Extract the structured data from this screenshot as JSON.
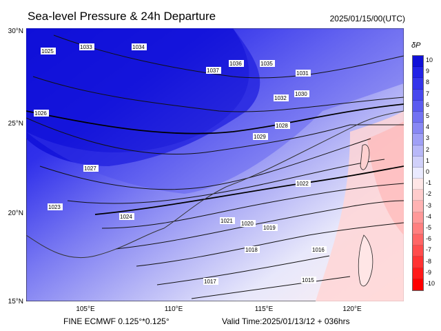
{
  "header": {
    "title": "Sea-level Pressure & 24h Departure",
    "datetime": "2025/01/15/00(UTC)"
  },
  "footer": {
    "model": "FINE ECMWF 0.125°*0.125°",
    "valid": "Valid Time:2025/01/13/12 + 036hrs"
  },
  "axes": {
    "lat_ticks": [
      "30°N",
      "25°N",
      "20°N",
      "15°N"
    ],
    "lon_ticks": [
      "105°E",
      "110°E",
      "115°E",
      "120°E"
    ]
  },
  "legend": {
    "title": "δP",
    "levels": [
      "10",
      "9",
      "8",
      "7",
      "6",
      "5",
      "4",
      "3",
      "2",
      "1",
      "0",
      "-1",
      "-2",
      "-3",
      "-4",
      "-5",
      "-6",
      "-7",
      "-8",
      "-9",
      "-10"
    ],
    "colors": [
      "#1010d8",
      "#2222e6",
      "#3434ea",
      "#4848ee",
      "#5c5cf0",
      "#7272f2",
      "#8888f4",
      "#a0a0f6",
      "#b8b8f8",
      "#d0d0fa",
      "#eaeaff",
      "#ffe6e6",
      "#ffcccc",
      "#ffb3b3",
      "#ff9999",
      "#ff8080",
      "#ff6666",
      "#ff4d4d",
      "#ff3333",
      "#ff1a1a",
      "#ff0000"
    ]
  },
  "isobar_labels": [
    "1025",
    "1033",
    "1034",
    "1035",
    "1036",
    "1037",
    "1031",
    "1030",
    "1032",
    "1029",
    "1028",
    "1027",
    "1026",
    "1024",
    "1023",
    "1022",
    "1021",
    "1020",
    "1019",
    "1018",
    "1017",
    "1016",
    "1015"
  ]
}
